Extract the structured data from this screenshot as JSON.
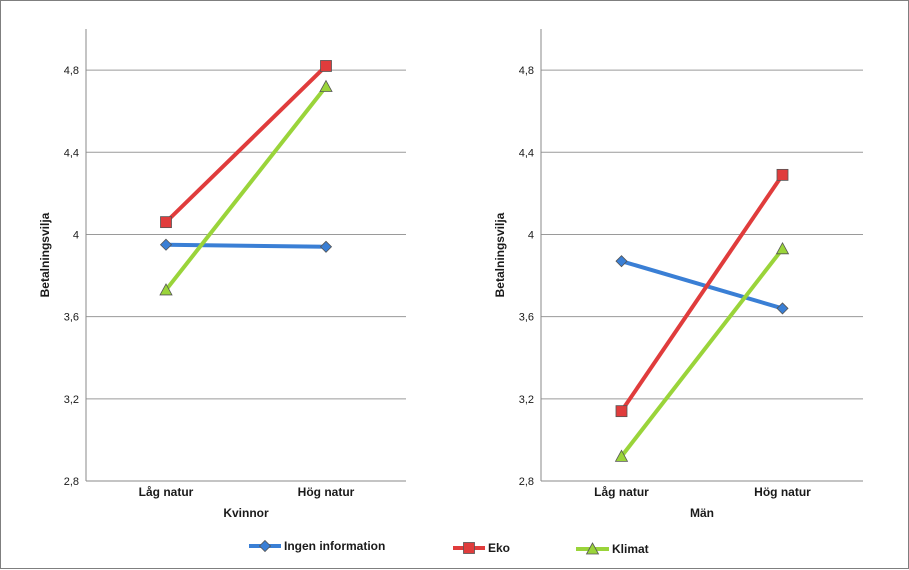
{
  "legend": {
    "placement": "bottom",
    "items": [
      {
        "label": "Ingen information",
        "color": "#3a7fd5",
        "marker": "diamond"
      },
      {
        "label": "Eko",
        "color": "#e03c3c",
        "marker": "square"
      },
      {
        "label": "Klimat",
        "color": "#9ad43a",
        "marker": "triangle"
      }
    ]
  },
  "chart_data": [
    {
      "type": "line",
      "title": "",
      "xlabel": "Kvinnor",
      "ylabel": "Betalningsvilja",
      "categories": [
        "Låg natur",
        "Hög natur"
      ],
      "ylim": [
        2.8,
        5.0
      ],
      "yticks": [
        "2,8",
        "3,2",
        "3,6",
        "4",
        "4,4",
        "4,8"
      ],
      "ytick_values": [
        2.8,
        3.2,
        3.6,
        4.0,
        4.4,
        4.8
      ],
      "grid": true,
      "series": [
        {
          "name": "Ingen information",
          "values": [
            3.95,
            3.94
          ]
        },
        {
          "name": "Eko",
          "values": [
            4.06,
            4.82
          ]
        },
        {
          "name": "Klimat",
          "values": [
            3.73,
            4.72
          ]
        }
      ]
    },
    {
      "type": "line",
      "title": "",
      "xlabel": "Män",
      "ylabel": "Betalningsvilja",
      "categories": [
        "Låg natur",
        "Hög natur"
      ],
      "ylim": [
        2.8,
        5.0
      ],
      "yticks": [
        "2,8",
        "3,2",
        "3,6",
        "4",
        "4,4",
        "4,8"
      ],
      "ytick_values": [
        2.8,
        3.2,
        3.6,
        4.0,
        4.4,
        4.8
      ],
      "grid": true,
      "series": [
        {
          "name": "Ingen information",
          "values": [
            3.87,
            3.64
          ]
        },
        {
          "name": "Eko",
          "values": [
            3.14,
            4.29
          ]
        },
        {
          "name": "Klimat",
          "values": [
            2.92,
            3.93
          ]
        }
      ]
    }
  ]
}
